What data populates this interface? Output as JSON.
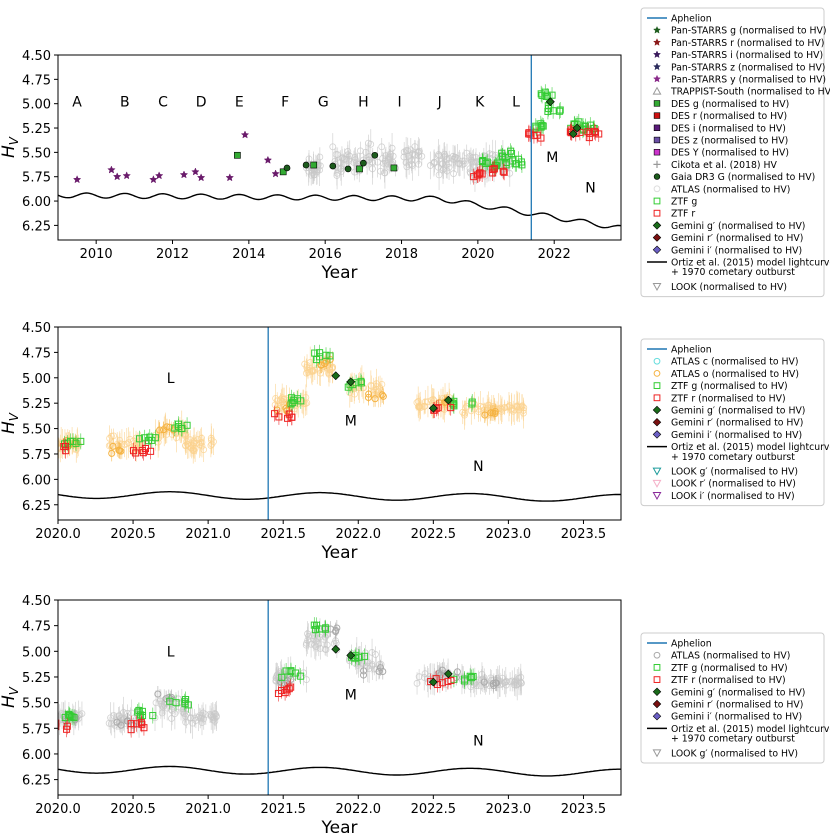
{
  "chart_data": [
    {
      "type": "scatter",
      "ylabel": "H_V",
      "xlabel": "Year",
      "xlim": [
        2009.0,
        2023.75
      ],
      "ylim": [
        6.4,
        4.5
      ],
      "xticks": [
        "2010",
        "2012",
        "2014",
        "2016",
        "2018",
        "2020",
        "2022"
      ],
      "xtick_values": [
        2010,
        2012,
        2014,
        2016,
        2018,
        2020,
        2022
      ],
      "yticks": [
        "4.50",
        "4.75",
        "5.00",
        "5.25",
        "5.50",
        "5.75",
        "6.00",
        "6.25"
      ],
      "ytick_values": [
        4.5,
        4.75,
        5.0,
        5.25,
        5.5,
        5.75,
        6.0,
        6.25
      ],
      "aphelion": 2021.4,
      "model": {
        "mean": 5.94,
        "amp": 0.025,
        "period": 1.0,
        "slope": 0.012,
        "x0": 2009.0,
        "drop_start": 2019.0,
        "drop_rate": 0.06
      },
      "epochs": [
        {
          "label": "A",
          "x": 2009.5,
          "y": 4.98
        },
        {
          "label": "B",
          "x": 2010.75,
          "y": 4.98
        },
        {
          "label": "C",
          "x": 2011.75,
          "y": 4.98
        },
        {
          "label": "D",
          "x": 2012.75,
          "y": 4.98
        },
        {
          "label": "E",
          "x": 2013.75,
          "y": 4.98
        },
        {
          "label": "F",
          "x": 2014.95,
          "y": 4.98
        },
        {
          "label": "G",
          "x": 2015.95,
          "y": 4.98
        },
        {
          "label": "H",
          "x": 2017.0,
          "y": 4.98
        },
        {
          "label": "I",
          "x": 2017.95,
          "y": 4.98
        },
        {
          "label": "J",
          "x": 2019.0,
          "y": 4.98
        },
        {
          "label": "K",
          "x": 2020.05,
          "y": 4.98
        },
        {
          "label": "L",
          "x": 2021.0,
          "y": 4.98
        },
        {
          "label": "M",
          "x": 2021.95,
          "y": 5.55
        },
        {
          "label": "N",
          "x": 2022.95,
          "y": 5.86
        }
      ],
      "series": [
        {
          "name": "Pan-STARRS",
          "marker": "star",
          "color": "#6a1b6b",
          "points": [
            [
              2009.5,
              5.78
            ],
            [
              2010.4,
              5.68
            ],
            [
              2010.55,
              5.75
            ],
            [
              2010.8,
              5.74
            ],
            [
              2011.5,
              5.78
            ],
            [
              2011.65,
              5.74
            ],
            [
              2012.3,
              5.73
            ],
            [
              2012.6,
              5.7
            ],
            [
              2012.75,
              5.76
            ],
            [
              2013.5,
              5.76
            ],
            [
              2013.9,
              5.32
            ],
            [
              2014.5,
              5.58
            ],
            [
              2014.7,
              5.72
            ]
          ]
        },
        {
          "name": "DES",
          "marker": "square",
          "color": "#33aa33",
          "points": [
            [
              2013.7,
              5.53
            ],
            [
              2014.9,
              5.7
            ],
            [
              2015.7,
              5.63
            ],
            [
              2016.9,
              5.67
            ],
            [
              2017.8,
              5.66
            ]
          ]
        },
        {
          "name": "Gaia DR3 G",
          "marker": "circle",
          "color": "#1d5c1d",
          "points": [
            [
              2015.0,
              5.66
            ],
            [
              2015.5,
              5.63
            ],
            [
              2016.2,
              5.64
            ],
            [
              2016.6,
              5.67
            ],
            [
              2017.3,
              5.53
            ],
            [
              2017.0,
              5.61
            ]
          ]
        },
        {
          "name": "ZTF g",
          "marker": "open-square",
          "color": "#33cc33",
          "points": [
            [
              2020.1,
              5.6
            ],
            [
              2020.6,
              5.62
            ],
            [
              2020.8,
              5.53
            ],
            [
              2021.0,
              5.6
            ],
            [
              2021.55,
              5.24
            ],
            [
              2021.8,
              4.9
            ],
            [
              2022.0,
              5.07
            ],
            [
              2022.6,
              5.22
            ],
            [
              2022.9,
              5.25
            ]
          ]
        },
        {
          "name": "ZTF r",
          "marker": "open-square",
          "color": "#ee2222",
          "points": [
            [
              2020.0,
              5.72
            ],
            [
              2020.55,
              5.7
            ],
            [
              2021.5,
              5.33
            ],
            [
              2022.55,
              5.28
            ],
            [
              2023.0,
              5.3
            ]
          ]
        },
        {
          "name": "Gemini",
          "marker": "diamond",
          "color": "#1a6b1a",
          "points": [
            [
              2021.9,
              4.98
            ],
            [
              2022.5,
              5.31
            ],
            [
              2022.6,
              5.25
            ]
          ]
        }
      ]
    },
    {
      "type": "scatter",
      "ylabel": "H_V",
      "xlabel": "Year",
      "xlim": [
        2020.0,
        2023.75
      ],
      "ylim": [
        6.4,
        4.5
      ],
      "xticks": [
        "2020.0",
        "2020.5",
        "2021.0",
        "2021.5",
        "2022.0",
        "2022.5",
        "2023.0",
        "2023.5"
      ],
      "xtick_values": [
        2020.0,
        2020.5,
        2021.0,
        2021.5,
        2022.0,
        2022.5,
        2023.0,
        2023.5
      ],
      "yticks": [
        "4.50",
        "4.75",
        "5.00",
        "5.25",
        "5.50",
        "5.75",
        "6.00",
        "6.25"
      ],
      "ytick_values": [
        4.5,
        4.75,
        5.0,
        5.25,
        5.5,
        5.75,
        6.0,
        6.25
      ],
      "aphelion": 2021.4,
      "model": {
        "mean": 6.15,
        "amp": 0.035,
        "period": 1.0,
        "slope": 0.03,
        "x0": 2020.0,
        "drop_start": 2030.0,
        "drop_rate": 0.0
      },
      "epochs": [
        {
          "label": "L",
          "x": 2020.75,
          "y": 5.0
        },
        {
          "label": "M",
          "x": 2021.95,
          "y": 5.42
        },
        {
          "label": "N",
          "x": 2022.8,
          "y": 5.87
        }
      ],
      "series": [
        {
          "name": "ATLAS o",
          "marker": "open-circle",
          "color": "#f5b342",
          "points": [
            [
              2020.05,
              5.65
            ],
            [
              2020.4,
              5.7
            ],
            [
              2020.7,
              5.5
            ],
            [
              2021.5,
              5.3
            ],
            [
              2021.8,
              4.85
            ],
            [
              2022.1,
              5.2
            ],
            [
              2022.6,
              5.25
            ],
            [
              2022.9,
              5.35
            ]
          ]
        },
        {
          "name": "ZTF g",
          "marker": "open-square",
          "color": "#33cc33",
          "points": [
            [
              2020.1,
              5.62
            ],
            [
              2020.6,
              5.6
            ],
            [
              2020.8,
              5.5
            ],
            [
              2021.55,
              5.22
            ],
            [
              2021.75,
              4.78
            ],
            [
              2022.0,
              5.05
            ],
            [
              2022.7,
              5.25
            ]
          ]
        },
        {
          "name": "ZTF r",
          "marker": "open-square",
          "color": "#ee2222",
          "points": [
            [
              2020.0,
              5.72
            ],
            [
              2020.55,
              5.72
            ],
            [
              2021.5,
              5.38
            ],
            [
              2022.55,
              5.3
            ]
          ]
        },
        {
          "name": "Gemini",
          "marker": "diamond",
          "color": "#1a6b1a",
          "points": [
            [
              2021.85,
              4.98
            ],
            [
              2021.95,
              5.04
            ],
            [
              2022.5,
              5.3
            ],
            [
              2022.6,
              5.22
            ]
          ]
        }
      ]
    },
    {
      "type": "scatter",
      "ylabel": "H_V",
      "xlabel": "Year",
      "xlim": [
        2020.0,
        2023.75
      ],
      "ylim": [
        6.4,
        4.5
      ],
      "xticks": [
        "2020.0",
        "2020.5",
        "2021.0",
        "2021.5",
        "2022.0",
        "2022.5",
        "2023.0",
        "2023.5"
      ],
      "xtick_values": [
        2020.0,
        2020.5,
        2021.0,
        2021.5,
        2022.0,
        2022.5,
        2023.0,
        2023.5
      ],
      "yticks": [
        "4.50",
        "4.75",
        "5.00",
        "5.25",
        "5.50",
        "5.75",
        "6.00",
        "6.25"
      ],
      "ytick_values": [
        4.5,
        4.75,
        5.0,
        5.25,
        5.5,
        5.75,
        6.0,
        6.25
      ],
      "aphelion": 2021.4,
      "model": {
        "mean": 6.15,
        "amp": 0.035,
        "period": 1.0,
        "slope": 0.03,
        "x0": 2020.0,
        "drop_start": 2030.0,
        "drop_rate": 0.0
      },
      "epochs": [
        {
          "label": "L",
          "x": 2020.75,
          "y": 5.0
        },
        {
          "label": "M",
          "x": 2021.95,
          "y": 5.42
        },
        {
          "label": "N",
          "x": 2022.8,
          "y": 5.87
        }
      ],
      "series": [
        {
          "name": "ATLAS",
          "marker": "open-circle",
          "color": "#aaaaaa",
          "points": [
            [
              2020.05,
              5.65
            ],
            [
              2020.45,
              5.7
            ],
            [
              2020.7,
              5.45
            ],
            [
              2021.5,
              5.3
            ],
            [
              2021.8,
              4.8
            ],
            [
              2022.1,
              5.2
            ],
            [
              2022.6,
              5.22
            ],
            [
              2022.9,
              5.3
            ]
          ]
        },
        {
          "name": "ZTF g",
          "marker": "open-square",
          "color": "#33cc33",
          "points": [
            [
              2020.1,
              5.62
            ],
            [
              2020.6,
              5.6
            ],
            [
              2020.8,
              5.5
            ],
            [
              2021.55,
              5.22
            ],
            [
              2021.75,
              4.78
            ],
            [
              2022.0,
              5.05
            ],
            [
              2022.7,
              5.25
            ]
          ]
        },
        {
          "name": "ZTF r",
          "marker": "open-square",
          "color": "#ee2222",
          "points": [
            [
              2020.0,
              5.72
            ],
            [
              2020.55,
              5.72
            ],
            [
              2021.5,
              5.38
            ],
            [
              2022.55,
              5.3
            ]
          ]
        },
        {
          "name": "Gemini",
          "marker": "diamond",
          "color": "#1a6b1a",
          "points": [
            [
              2021.85,
              4.98
            ],
            [
              2021.95,
              5.04
            ],
            [
              2022.5,
              5.3
            ],
            [
              2022.6,
              5.22
            ]
          ]
        }
      ]
    }
  ],
  "legends": [
    [
      {
        "text": "Aphelion",
        "marker": "line",
        "color": "#1f77b4"
      },
      {
        "text": "Pan-STARRS g (normalised to H_V)",
        "marker": "star",
        "color": "#1d5c1d"
      },
      {
        "text": "Pan-STARRS r (normalised to H_V)",
        "marker": "star",
        "color": "#8b1a1a"
      },
      {
        "text": "Pan-STARRS i (normalised to H_V)",
        "marker": "star",
        "color": "#3a1a5c"
      },
      {
        "text": "Pan-STARRS z (normalised to H_V)",
        "marker": "star",
        "color": "#2b2b5c"
      },
      {
        "text": "Pan-STARRS y (normalised to H_V)",
        "marker": "star",
        "color": "#8a2a8a"
      },
      {
        "text": "TRAPPIST-South (normalised to H_V)",
        "marker": "open-triangle",
        "color": "#999999"
      },
      {
        "text": "DES g (normalised to H_V)",
        "marker": "square",
        "color": "#33aa33"
      },
      {
        "text": "DES r (normalised to H_V)",
        "marker": "square",
        "color": "#cc1111"
      },
      {
        "text": "DES i (normalised to H_V)",
        "marker": "square",
        "color": "#5a1a7a"
      },
      {
        "text": "DES z (normalised to H_V)",
        "marker": "square",
        "color": "#6b4fa6"
      },
      {
        "text": "DES Y (normalised to H_V)",
        "marker": "square",
        "color": "#cc33cc"
      },
      {
        "text": "Cikota et al. (2018) H_V",
        "marker": "plus",
        "color": "#999999"
      },
      {
        "text": "Gaia DR3 G (normalised to H_V)",
        "marker": "circle",
        "color": "#1d5c1d"
      },
      {
        "text": "ATLAS (normalised to H_V)",
        "marker": "open-circle",
        "color": "#dddddd"
      },
      {
        "text": "ZTF g",
        "marker": "open-square",
        "color": "#33cc33"
      },
      {
        "text": "ZTF r",
        "marker": "open-square",
        "color": "#ee2222"
      },
      {
        "text": "Gemini g′ (normalised to H_V)",
        "marker": "diamond",
        "color": "#1a6b1a"
      },
      {
        "text": "Gemini r′ (normalised to H_V)",
        "marker": "diamond",
        "color": "#7a1010"
      },
      {
        "text": "Gemini i′ (normalised to H_V)",
        "marker": "diamond",
        "color": "#6b5fc4"
      },
      {
        "text": "Ortiz et al. (2015) model lightcurve",
        "text2": "+ 1970 cometary outburst",
        "marker": "line",
        "color": "#000000"
      },
      {
        "text": "LOOK (normalised to H_V)",
        "marker": "open-triangle-down",
        "color": "#999999"
      }
    ],
    [
      {
        "text": "Aphelion",
        "marker": "line",
        "color": "#1f77b4"
      },
      {
        "text": "ATLAS c (normalised to H_V)",
        "marker": "open-circle",
        "color": "#66dddd"
      },
      {
        "text": "ATLAS o (normalised to H_V)",
        "marker": "open-circle",
        "color": "#f5b342"
      },
      {
        "text": "ZTF g (normalised to H_V)",
        "marker": "open-square",
        "color": "#33cc33"
      },
      {
        "text": "ZTF r (normalised to H_V)",
        "marker": "open-square",
        "color": "#ee2222"
      },
      {
        "text": "Gemini g′ (normalised to H_V)",
        "marker": "diamond",
        "color": "#1a6b1a"
      },
      {
        "text": "Gemini r′ (normalised to H_V)",
        "marker": "diamond",
        "color": "#7a1010"
      },
      {
        "text": "Gemini i′ (normalised to H_V)",
        "marker": "diamond",
        "color": "#6b5fc4"
      },
      {
        "text": "Ortiz et al. (2015) model lightcurve",
        "text2": "+ 1970 cometary outburst",
        "marker": "line",
        "color": "#000000"
      },
      {
        "text": "LOOK g′ (normalised to H_V)",
        "marker": "open-triangle-down",
        "color": "#1a9a9a"
      },
      {
        "text": "LOOK r′ (normalised to H_V)",
        "marker": "open-triangle-down",
        "color": "#f5b0c8"
      },
      {
        "text": "LOOK i′ (normalised to H_V)",
        "marker": "open-triangle-down",
        "color": "#8a2a9a"
      }
    ],
    [
      {
        "text": "Aphelion",
        "marker": "line",
        "color": "#1f77b4"
      },
      {
        "text": "ATLAS (normalised to H_V)",
        "marker": "open-circle",
        "color": "#aaaaaa"
      },
      {
        "text": "ZTF g (normalised to H_V)",
        "marker": "open-square",
        "color": "#33cc33"
      },
      {
        "text": "ZTF r (normalised to H_V)",
        "marker": "open-square",
        "color": "#ee2222"
      },
      {
        "text": "Gemini g′ (normalised to H_V)",
        "marker": "diamond",
        "color": "#1a6b1a"
      },
      {
        "text": "Gemini r′ (normalised to H_V)",
        "marker": "diamond",
        "color": "#7a1010"
      },
      {
        "text": "Gemini i′ (normalised to H_V)",
        "marker": "diamond",
        "color": "#6b5fc4"
      },
      {
        "text": "Ortiz et al. (2015) model lightcurve",
        "text2": "+ 1970 cometary outburst",
        "marker": "line",
        "color": "#000000"
      },
      {
        "text": "LOOK g′ (normalised to H_V)",
        "marker": "open-triangle-down",
        "color": "#999999"
      }
    ]
  ]
}
